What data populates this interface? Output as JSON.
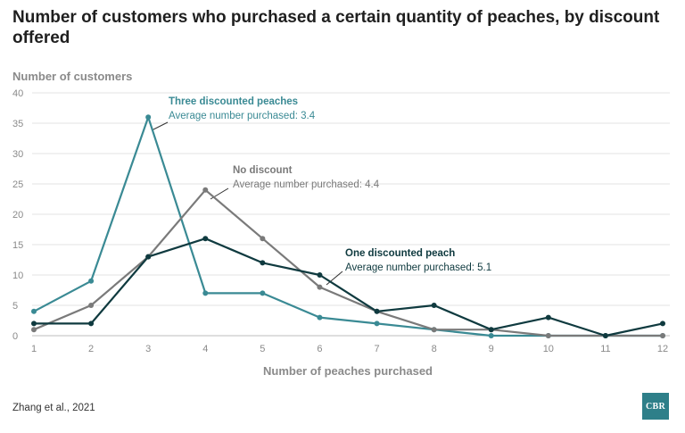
{
  "title": "Number of customers who purchased a certain quantity of peaches, by discount offered",
  "source": "Zhang et al., 2021",
  "logo_text": "CBR",
  "chart_data": {
    "type": "line",
    "title": "Number of customers who purchased a certain quantity of peaches, by discount offered",
    "xlabel": "Number of peaches purchased",
    "ylabel": "Number of customers",
    "x": [
      1,
      2,
      3,
      4,
      5,
      6,
      7,
      8,
      9,
      10,
      11,
      12
    ],
    "xlim": [
      1,
      12
    ],
    "ylim": [
      0,
      40
    ],
    "yticks": [
      0,
      5,
      10,
      15,
      20,
      25,
      30,
      35,
      40
    ],
    "grid": "horizontal",
    "series": [
      {
        "name": "Three discounted peaches",
        "subtitle": "Average number purchased: 3.4",
        "color": "#3a8a94",
        "values": [
          4,
          9,
          36,
          7,
          7,
          3,
          2,
          1,
          0,
          0,
          0,
          0
        ]
      },
      {
        "name": "No discount",
        "subtitle": "Average number purchased: 4.4",
        "color": "#7a7a7a",
        "values": [
          1,
          5,
          13,
          24,
          16,
          8,
          4,
          1,
          1,
          0,
          0,
          0
        ]
      },
      {
        "name": "One discounted peach",
        "subtitle": "Average number purchased: 5.1",
        "color": "#0f3a3f",
        "values": [
          2,
          2,
          13,
          16,
          12,
          10,
          4,
          5,
          1,
          3,
          0,
          2
        ]
      }
    ]
  }
}
